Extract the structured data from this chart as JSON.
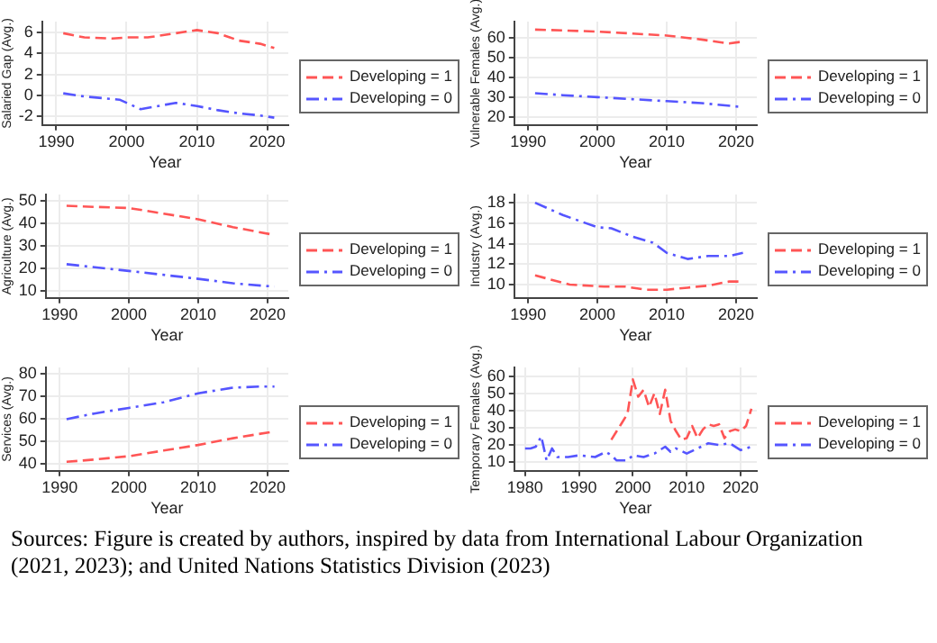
{
  "chart_data": [
    {
      "type": "line",
      "xlabel": "Year",
      "ylabel": "Salaried Gap (Avg.)",
      "xlim": [
        1988,
        2023
      ],
      "xticks": [
        1990,
        2000,
        2010,
        2020
      ],
      "ylim": [
        -2.8,
        7
      ],
      "yticks": [
        -2,
        0,
        2,
        4,
        6
      ],
      "grid": true,
      "legend": "right",
      "line_style": "dashed",
      "series": [
        {
          "name": "Developing = 1",
          "color": "#ff5555",
          "x": [
            1991,
            1994,
            1998,
            2000,
            2003,
            2007,
            2010,
            2013,
            2016,
            2019,
            2021
          ],
          "values": [
            5.9,
            5.5,
            5.4,
            5.5,
            5.5,
            5.9,
            6.2,
            5.9,
            5.2,
            4.9,
            4.5
          ]
        },
        {
          "name": "Developing = 0",
          "color": "#5555ff",
          "x": [
            1991,
            1994,
            1999,
            2002,
            2007,
            2010,
            2013,
            2016,
            2019,
            2021
          ],
          "values": [
            0.2,
            -0.1,
            -0.4,
            -1.3,
            -0.7,
            -1.0,
            -1.4,
            -1.7,
            -1.9,
            -2.1
          ]
        }
      ]
    },
    {
      "type": "line",
      "xlabel": "Year",
      "ylabel": "Vulnerable Females (Avg.)",
      "xlim": [
        1988,
        2023
      ],
      "xticks": [
        1990,
        2000,
        2010,
        2020
      ],
      "ylim": [
        16,
        68
      ],
      "yticks": [
        20,
        30,
        40,
        50,
        60
      ],
      "grid": true,
      "legend": "right",
      "line_style": "dashed",
      "series": [
        {
          "name": "Developing = 1",
          "color": "#ff5555",
          "x": [
            1991,
            2000,
            2005,
            2010,
            2015,
            2019,
            2021
          ],
          "values": [
            64,
            63,
            62,
            61,
            59,
            57,
            58
          ]
        },
        {
          "name": "Developing = 0",
          "color": "#5555ff",
          "x": [
            1991,
            1995,
            2000,
            2005,
            2010,
            2015,
            2021
          ],
          "values": [
            32,
            31,
            30,
            29,
            28,
            27,
            25
          ]
        }
      ]
    },
    {
      "type": "line",
      "xlabel": "Year",
      "ylabel": "Agriculture (Avg.)",
      "xlim": [
        1988,
        2023
      ],
      "xticks": [
        1990,
        2000,
        2010,
        2020
      ],
      "ylim": [
        7,
        53
      ],
      "yticks": [
        10,
        20,
        30,
        40,
        50
      ],
      "grid": true,
      "legend": "right",
      "line_style": "dashed",
      "series": [
        {
          "name": "Developing = 1",
          "color": "#ff5555",
          "x": [
            1991,
            1995,
            2000,
            2005,
            2010,
            2015,
            2021
          ],
          "values": [
            48,
            47.5,
            47,
            44.5,
            42,
            38.5,
            35
          ]
        },
        {
          "name": "Developing = 0",
          "color": "#5555ff",
          "x": [
            1991,
            2000,
            2010,
            2015,
            2021
          ],
          "values": [
            22,
            19,
            15.5,
            13.5,
            12
          ]
        }
      ]
    },
    {
      "type": "line",
      "xlabel": "Year",
      "ylabel": "Industry (Avg.)",
      "xlim": [
        1988,
        2023
      ],
      "xticks": [
        1990,
        2000,
        2010,
        2020
      ],
      "ylim": [
        8.7,
        18.8
      ],
      "yticks": [
        10,
        12,
        14,
        16,
        18
      ],
      "grid": true,
      "legend": "right",
      "line_style": "dashed",
      "series": [
        {
          "name": "Developing = 1",
          "color": "#ff5555",
          "x": [
            1991,
            1996,
            2001,
            2004,
            2007,
            2010,
            2013,
            2016,
            2019,
            2021
          ],
          "values": [
            10.9,
            10.0,
            9.8,
            9.8,
            9.5,
            9.5,
            9.7,
            9.9,
            10.3,
            10.3
          ]
        },
        {
          "name": "Developing = 0",
          "color": "#5555ff",
          "x": [
            1991,
            1995,
            2000,
            2002,
            2005,
            2008,
            2010,
            2013,
            2016,
            2019,
            2021
          ],
          "values": [
            18.0,
            16.8,
            15.6,
            15.5,
            14.7,
            14.1,
            13.1,
            12.5,
            12.8,
            12.8,
            13.1
          ]
        }
      ]
    },
    {
      "type": "line",
      "xlabel": "Year",
      "ylabel": "Services (Avg.)",
      "xlim": [
        1988,
        2023
      ],
      "xticks": [
        1990,
        2000,
        2010,
        2020
      ],
      "ylim": [
        37,
        83
      ],
      "yticks": [
        40,
        50,
        60,
        70,
        80
      ],
      "grid": true,
      "legend": "right",
      "line_style": "dashed",
      "series": [
        {
          "name": "Developing = 1",
          "color": "#ff5555",
          "x": [
            1991,
            1995,
            2000,
            2005,
            2010,
            2015,
            2021
          ],
          "values": [
            41,
            42,
            43.5,
            46,
            48.5,
            51.5,
            54.5
          ]
        },
        {
          "name": "Developing = 0",
          "color": "#5555ff",
          "x": [
            1991,
            1995,
            2000,
            2005,
            2010,
            2015,
            2019,
            2021
          ],
          "values": [
            60,
            62.5,
            65,
            67.5,
            71.5,
            74,
            74.5,
            74.5
          ]
        }
      ]
    },
    {
      "type": "line",
      "xlabel": "Year",
      "ylabel": "Temporary Females (Avg.)",
      "xlim": [
        1978,
        2023
      ],
      "xticks": [
        1980,
        1990,
        2000,
        2010,
        2020
      ],
      "ylim": [
        5,
        65
      ],
      "yticks": [
        10,
        20,
        30,
        40,
        50,
        60
      ],
      "grid": true,
      "legend": "right",
      "line_style": "dashed",
      "annotations": [
        "Sources: Figure is created by authors, inspired by data from International Labour Organization (2021, 2023); and United Nations Statistics Division (2023)"
      ],
      "series": [
        {
          "name": "Developing = 1",
          "color": "#ff5555",
          "x": [
            1996,
            1997,
            1998,
            1999,
            2000,
            2001,
            2002,
            2003,
            2004,
            2005,
            2006,
            2007,
            2008,
            2009,
            2010,
            2011,
            2012,
            2013,
            2014,
            2015,
            2016,
            2017,
            2018,
            2019,
            2020,
            2021,
            2022
          ],
          "values": [
            23,
            28,
            33,
            38,
            58,
            48,
            52,
            42,
            50,
            38,
            52,
            34,
            28,
            23,
            24,
            31,
            24,
            29,
            32,
            31,
            32,
            24,
            28,
            29,
            28,
            31,
            41
          ]
        },
        {
          "name": "Developing = 0",
          "color": "#5555ff",
          "x": [
            1980,
            1981,
            1982,
            1983,
            1984,
            1985,
            1986,
            1988,
            1990,
            1993,
            1995,
            1996,
            1997,
            1999,
            2000,
            2002,
            2004,
            2006,
            2007,
            2008,
            2010,
            2012,
            2014,
            2016,
            2018,
            2020,
            2022
          ],
          "values": [
            18,
            18,
            19,
            25,
            11,
            18,
            13,
            13,
            14,
            13,
            16,
            14,
            11,
            11,
            14,
            13,
            15,
            19,
            16,
            18,
            15,
            18,
            21,
            20,
            21,
            17,
            19
          ]
        }
      ]
    }
  ]
}
